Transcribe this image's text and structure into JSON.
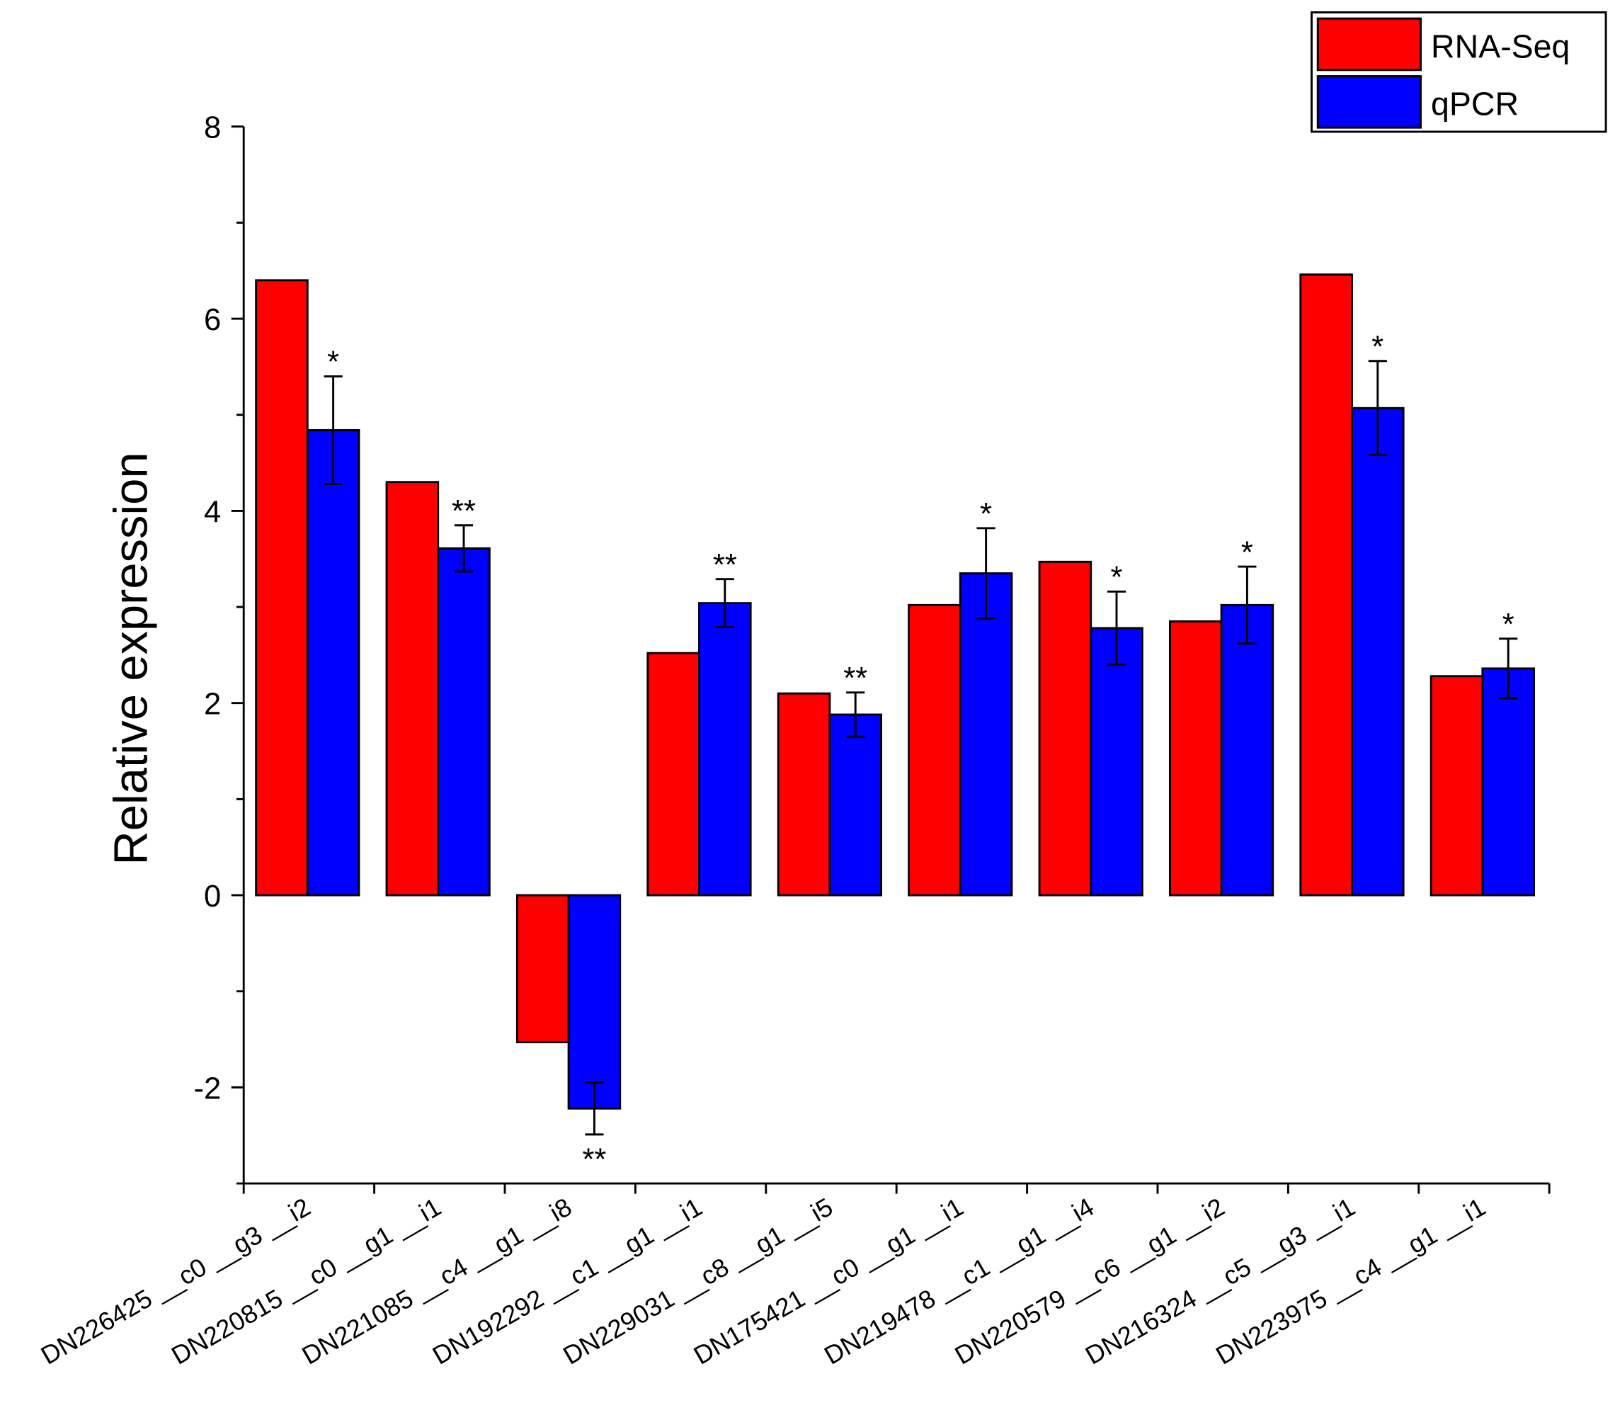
{
  "chart_data": {
    "type": "bar",
    "y_label": "Relative expression",
    "categories": [
      "DN226425 __c0 __g3 __i2",
      "DN220815 __c0 __g1 __i1",
      "DN221085 __c4 __g1 __i8",
      "DN192292 __c1 __g1 __i1",
      "DN229031 __c8 __g1 __i5",
      "DN175421 __c0 __g1 __i1",
      "DN219478 __c1 __g1 __i4",
      "DN220579 __c6 __g1 __i2",
      "DN216324 __c5 __g3 __i1",
      "DN223975 __c4 __g1 __i1"
    ],
    "series": [
      {
        "name": "RNA-Seq",
        "color": "#ff0000",
        "values": [
          6.4,
          4.3,
          -1.53,
          2.52,
          2.1,
          3.02,
          3.47,
          2.85,
          6.46,
          2.28
        ]
      },
      {
        "name": "qPCR",
        "color": "#0000ff",
        "values": [
          4.84,
          3.61,
          -2.22,
          3.04,
          1.88,
          3.35,
          2.78,
          3.02,
          5.07,
          2.36
        ],
        "errors": [
          0.56,
          0.24,
          0.27,
          0.25,
          0.23,
          0.47,
          0.38,
          0.4,
          0.49,
          0.31
        ],
        "annotations": [
          "*",
          "**",
          "**",
          "**",
          "**",
          "*",
          "*",
          "*",
          "*",
          "*"
        ]
      }
    ],
    "ylim": [
      -3,
      8
    ],
    "yticks": [
      -2,
      0,
      2,
      4,
      6,
      8
    ],
    "yminor_ticks": [
      -3,
      -1,
      1,
      3,
      5,
      7
    ],
    "legend": "top-right"
  }
}
